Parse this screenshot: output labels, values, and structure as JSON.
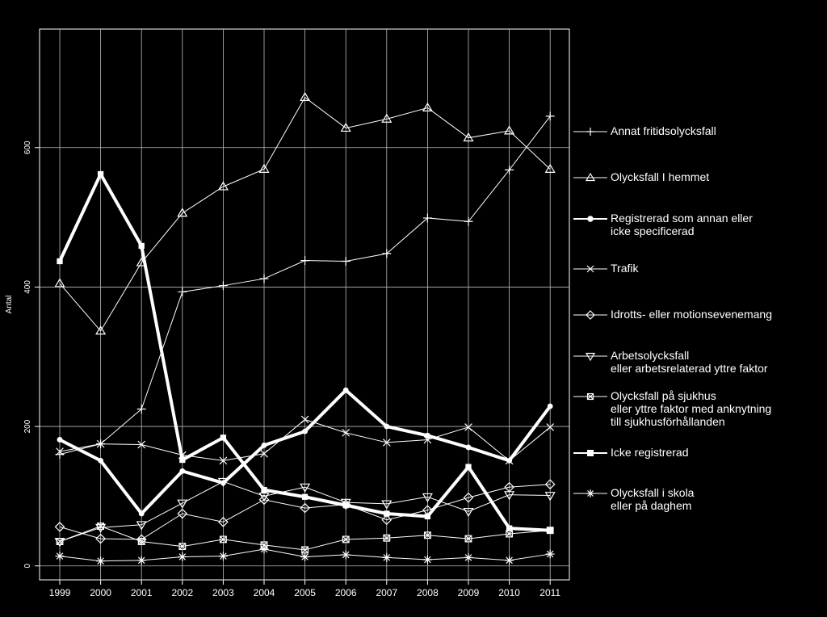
{
  "chart_data": {
    "type": "line",
    "ylabel": "Antal",
    "ylim": [
      -20,
      770
    ],
    "yticks": [
      0,
      200,
      400,
      600
    ],
    "x": [
      "1999",
      "2000",
      "2001",
      "2002",
      "2003",
      "2004",
      "2005",
      "2006",
      "2007",
      "2008",
      "2009",
      "2010",
      "2011"
    ],
    "grid": true,
    "legend_position": "right",
    "series": [
      {
        "name": "Annat fritidsolycksfall",
        "marker": "plus",
        "bold": false,
        "values": [
          160,
          175,
          225,
          393,
          402,
          412,
          438,
          437,
          448,
          499,
          494,
          568,
          645
        ]
      },
      {
        "name": "Olycksfall I hemmet",
        "marker": "triangle",
        "bold": false,
        "values": [
          405,
          337,
          435,
          506,
          544,
          569,
          672,
          628,
          641,
          657,
          614,
          624,
          569
        ]
      },
      {
        "name": "Registrerad som annan eller\nicke specificerad",
        "marker": "dot",
        "bold": true,
        "values": [
          181,
          151,
          75,
          136,
          119,
          173,
          193,
          252,
          200,
          187,
          170,
          151,
          229
        ]
      },
      {
        "name": "Trafik",
        "marker": "x",
        "bold": false,
        "values": [
          164,
          175,
          174,
          159,
          151,
          161,
          210,
          191,
          177,
          181,
          199,
          151,
          199
        ]
      },
      {
        "name": "Idrotts- eller motionsevenemang",
        "marker": "diamond",
        "bold": false,
        "values": [
          56,
          39,
          38,
          75,
          63,
          95,
          83,
          88,
          66,
          80,
          98,
          113,
          117
        ]
      },
      {
        "name": "Arbetsolycksfall\neller arbetsrelaterad yttre faktor",
        "marker": "triangle-down",
        "bold": false,
        "values": [
          35,
          55,
          59,
          90,
          121,
          100,
          113,
          91,
          89,
          99,
          78,
          102,
          101
        ]
      },
      {
        "name": "Olycksfall på sjukhus\neller yttre faktor med anknytning\ntill sjukhusförhållanden",
        "marker": "boxx",
        "bold": false,
        "values": [
          35,
          57,
          35,
          28,
          38,
          30,
          23,
          38,
          40,
          44,
          39,
          46,
          51
        ]
      },
      {
        "name": "Icke registrerad",
        "marker": "square",
        "bold": true,
        "values": [
          437,
          562,
          459,
          152,
          184,
          109,
          99,
          87,
          75,
          71,
          142,
          54,
          51
        ]
      },
      {
        "name": "Olycksfall i skola\neller på daghem",
        "marker": "asterisk",
        "bold": false,
        "values": [
          14,
          7,
          8,
          13,
          14,
          24,
          13,
          16,
          12,
          9,
          12,
          8,
          17
        ]
      }
    ]
  }
}
